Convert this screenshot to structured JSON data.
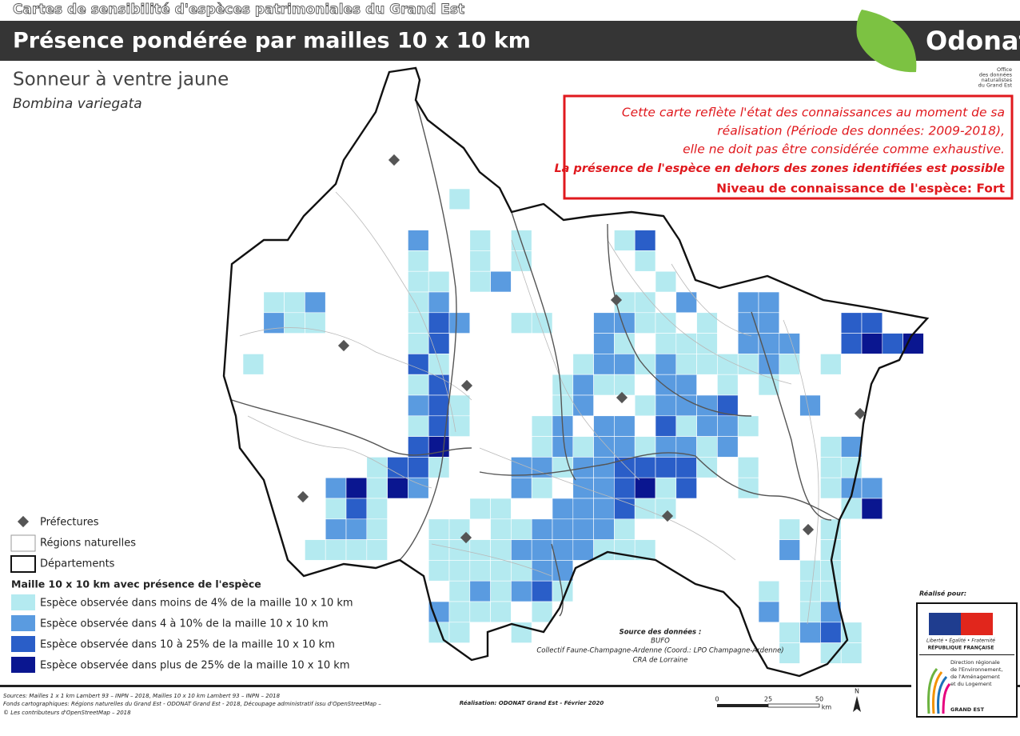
{
  "header": {
    "supertitle": "Cartes de sensibilité d'espèces patrimoniales du Grand Est",
    "title": "Présence pondérée par mailles 10 x 10 km",
    "logo": "Odonat",
    "logo_subtitle": [
      "Office",
      "des données",
      "naturalistes",
      "du Grand Est"
    ]
  },
  "species": {
    "common_name": "Sonneur à ventre jaune",
    "latin_name": "Bombina variegata"
  },
  "notice": [
    "Cette carte reflète l'état des connaissances au moment de sa",
    "réalisation (Période des données: 2009-2018),",
    "elle ne doit pas être considérée comme exhaustive.",
    "La présence de l'espèce en dehors des zones identifiées est possible",
    "Niveau de connaissance de l'espèce: Fort"
  ],
  "legend": {
    "prefectures": "Préfectures",
    "regions": "Régions naturelles",
    "departements": "Départements",
    "classes_title": "Maille 10 x 10 km avec présence de l'espèce",
    "classes": [
      {
        "label": "Espèce observée dans moins de 4% de la maille 10 x 10 km",
        "color": "#b4eaf0"
      },
      {
        "label": "Espèce observée dans 4 à 10% de la maille 10 x 10 km",
        "color": "#5a9be0"
      },
      {
        "label": "Espèce observée dans 10 à 25% de la maille 10 x 10 km",
        "color": "#2a5ec8"
      },
      {
        "label": "Espèce observée dans plus de 25% de la maille 10 x 10 km",
        "color": "#0a1690"
      }
    ]
  },
  "data_source": {
    "title": "Source des données :",
    "lines": [
      "BUFO",
      "Collectif Faune-Champagne-Ardenne (Coord.: LPO Champagne-Ardenne)",
      "CRA de Lorraine"
    ]
  },
  "footer": {
    "sources": [
      "Sources:  Mailles 1 x 1 km Lambert 93 – INPN – 2018, Mailles 10 x 10 km Lambert 93 – INPN – 2018",
      "Fonds cartographiques:  Régions naturelles du Grand Est - ODONAT Grand Est - 2018,  Découpage administratif issu d'OpenStreetMap –",
      "© Les contributeurs d'OpenStreetMap – 2018"
    ],
    "realisation": "Réalisation: ODONAT Grand Est - Février 2020",
    "scale": {
      "ticks": [
        "0",
        "25",
        "50"
      ],
      "unit": "km"
    },
    "north": "N"
  },
  "partner": {
    "intro": "Réalisé pour:",
    "republic": [
      "Liberté • Égalité • Fraternité",
      "RÉPUBLIQUE FRANÇAISE"
    ],
    "dreal": [
      "Direction régionale",
      "de l'Environnement,",
      "de l'Aménagement",
      "et du Logement"
    ],
    "region": "GRAND EST"
  }
}
